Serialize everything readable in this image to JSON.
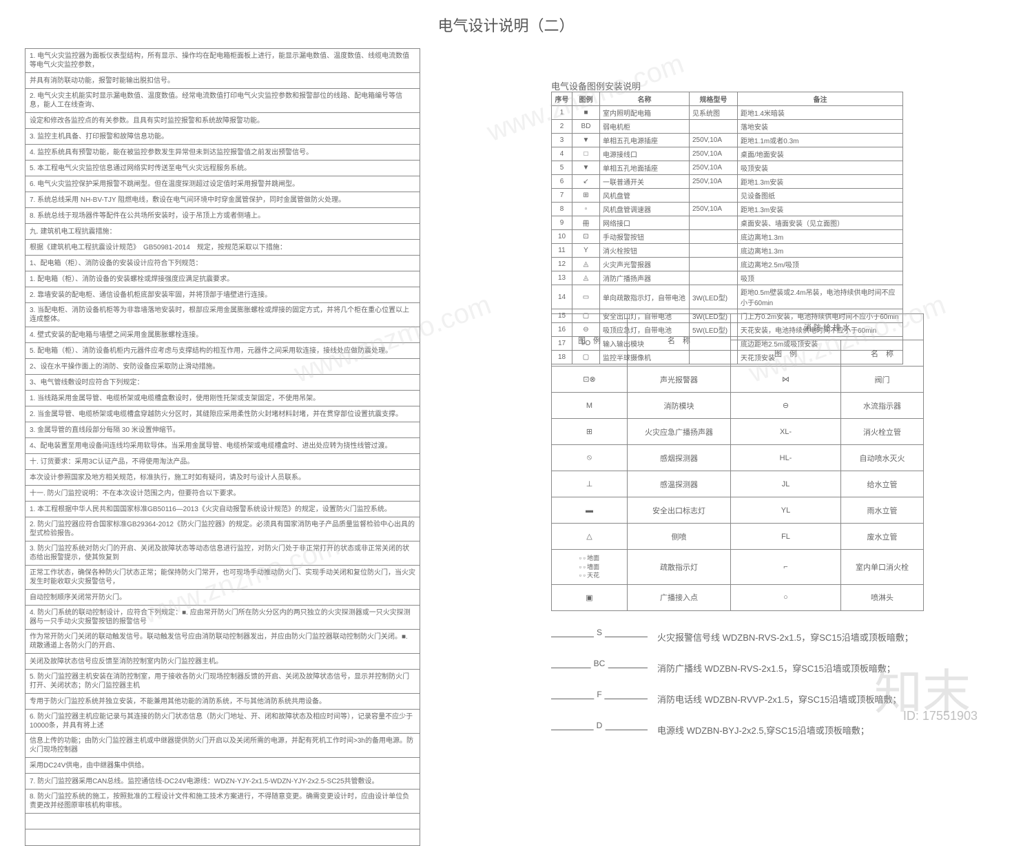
{
  "title": "电气设计说明（二）",
  "watermark_text": "www.znzmo.com",
  "watermark_big": "知末",
  "watermark_id": "ID: 17551903",
  "left_rows": [
    "1. 电气火灾监控器为面板仪表型结构，所有显示、操作均在配电箱柜面板上进行，能显示漏电数值、温度数值、线缆电流数值等电气火灾监控参数，",
    "并具有消防联动功能，报警时能输出脱扣信号。",
    "2. 电气火灾主机能实时显示漏电数值、温度数值。经常电流数值打印电气火灾监控参数和报警部位的线路、配电箱编号等信息，能人工在线查询、",
    "设定和修改各监控点的有关参数。且具有实时监控报警和系统故障报警功能。",
    "3. 监控主机具备、打印报警和故障信息功能。",
    "4. 监控系统具有预警功能，能在被监控参数发生异常但未到达监控报警值之前发出预警信号。",
    "5. 本工程电气火灾监控信息通过网络实时传送至电气火灾远程服务系统。",
    "6. 电气火灾监控保护采用报警不跳闸型。但在温度探测超过设定值时采用报警并跳闸型。",
    "7. 系统总线采用 NH-BV-TJY 阻燃电线，敷设在电气间环境中时穿金属管保护，同时金属管做防火处理。",
    "8. 系统总线于现场器件等配件在公共场所安装时，设于吊顶上方或者侧墙上。",
    "九. 建筑机电工程抗震措施：",
    "根据《建筑机电工程抗震设计规范》　GB50981-2014　规定，按规范采取以下措施：",
    "1、配电箱（柜）、消防设备的安装设计应符合下列规范：",
    "1. 配电箱（柜）、消防设备的安装螺栓或焊接强度应满足抗震要求。",
    "2. 靠墙安装的配电柜、通信设备机柜底部安装牢固，并将顶部于墙壁进行连接。",
    "3. 当配电柜、消防设备机柜等为非靠墙落地安装时，根部应采用金属膨胀螺栓或焊接的固定方式，并将几个柜在重心位置以上连成整体。",
    "4. 壁式安装的配电箱与墙壁之间采用金属膨胀螺栓连接。",
    "5. 配电箱（柜）、消防设备机柜内元器件应考虑与支撑结构的相互作用，元器件之间采用软连接，接线处应做防震处理。",
    "2、设在水平操作面上的消防、安防设备应采取防止滑动措施。",
    "3、电气管线敷设时应符合下列规定：",
    "1. 当线路采用金属导管、电缆桥架或电缆槽盒敷设时，使用刚性托架或支架固定，不使用吊架。",
    "2. 当金属导管、电缆桥架或电缆槽盒穿越防火分区时，其缝隙应采用柔性防火封堵材料封堵，并在贯穿部位设置抗震支撑。",
    "3. 金属导管的直线段部分每隔 30 米设置伸缩节。",
    "4、配电装置至用电设备间连线均采用软导体。当采用金属导管、电缆桥架或电缆槽盒时、进出处应转为挠性线管过渡。",
    "十. 订货要求：采用3C认证产品，不得使用淘汰产品。",
    "本次设计参照国家及地方相关规范，标准执行，施工时如有疑问，请及时与设计人员联系。",
    "十一. 防火门监控说明：不在本次设计范围之内，但要符合以下要求。",
    "1. 本工程根据中华人民共和国国家标准GB50116—2013《火灾自动报警系统设计规范》的规定，设置防火门监控系统。",
    "2. 防火门监控器应符合国家标准GB29364-2012《防火门监控器》的规定。必须具有国家消防电子产品质量监督检验中心出具的型式检验报告。",
    "3. 防火门监控系统对防火门的开启、关闭及故障状态等动态信息进行监控，对防火门处于非正常打开的状态或非正常关闭的状态给出报警提示，使其恢复到",
    "正常工作状态，确保各种防火门状态正常；能保持防火门常开，也可现场手动推动防火门、实现手动关闭和复位防火门，当火灾发生时能收取火灾报警信号，",
    "自动控制顺序关闭常开防火门。",
    "4. 防火门系统的联动控制设计，应符合下列规定：■. 应由常开防火门所在防火分区内的两只独立的火灾探测器或一只火灾探测器与一只手动火灾报警按钮的报警信号",
    "作为常开防火门关闭的联动触发信号。联动触发信号应由消防联动控制器发出，并应由防火门监控器联动控制防火门关闭。■. 疏散通道上各防火门的开启、",
    "关闭及故障状态信号应反馈至消防控制室内防火门监控器主机。",
    "5. 防火门监控器主机安装在消防控制室，用于接收各防火门现场控制器反馈的开启、关闭及故障状态信号，显示并控制防火门打开、关闭状态；防火门监控器主机",
    "专用于防火门监控系统并独立安装，不能兼用其他功能的消防系统，不与其他消防系统共用设备。",
    "6. 防火门监控器主机应能记录与其连接的防火门状态信息（防火门地址、开、闭和故障状态及相应时间等），记录容量不应少于10000条，并具有将上述",
    "信息上传的功能；由防火门监控器主机或中继器提供防火门开启以及关闭所需的电源，并配有死机工作时间>3h的备用电源。防火门现场控制器",
    "采用DC24V供电，由中继器集中供给。",
    "7. 防火门监控器采用CAN总线。监控通信线-DC24V电源线：WDZN-YJY-2x1.5-WDZN-YJY-2x2.5-SC25共管敷设。",
    "8. 防火门监控系统的施工，按照批准的工程设计文件和施工技术方案进行，不得随意变更。确需变更设计时，应由设计单位负责更改并经图原审核机构审核。",
    "　",
    "　"
  ],
  "equip_title": "电气设备图例安装说明",
  "equip_header": [
    "序号",
    "图例",
    "名称",
    "规格型号",
    "备注"
  ],
  "equip_rows": [
    [
      "1",
      "■",
      "室内照明配电箱",
      "见系统图",
      "距地1.4米暗装"
    ],
    [
      "2",
      "BD",
      "弱电机柜",
      "",
      "落地安装"
    ],
    [
      "3",
      "▼",
      "单相五孔电源插座",
      "250V,10A",
      "距地1.1m或者0.3m"
    ],
    [
      "4",
      "□",
      "电源接线口",
      "250V,10A",
      "桌面/地面安装"
    ],
    [
      "5",
      "▼",
      "单相五孔地面插座",
      "250V,10A",
      "吸顶安装"
    ],
    [
      "6",
      "↙",
      "一联普通开关",
      "250V,10A",
      "距地1.3m安装"
    ],
    [
      "7",
      "⊞",
      "风机盘管",
      "",
      "见设备图纸"
    ],
    [
      "8",
      "▫",
      "风机盘管调速器",
      "250V,10A",
      "距地1.3m安装"
    ],
    [
      "9",
      "冊",
      "网络接口",
      "",
      "桌面安装、墙面安装（见立面图）"
    ],
    [
      "10",
      "⊡",
      "手动报警按钮",
      "",
      "底边离地1.3m"
    ],
    [
      "11",
      "Y",
      "消火栓按钮",
      "",
      "底边离地1.3m"
    ],
    [
      "12",
      "◬",
      "火灾声光警报器",
      "",
      "底边离地2.5m/吸顶"
    ],
    [
      "13",
      "◬",
      "消防广播扬声器",
      "",
      "吸顶"
    ],
    [
      "14",
      "▭",
      "单向疏散指示灯，自带电池",
      "3W(LED型)",
      "距地0.5m壁装或2.4m吊装，电池持续供电时间不应小于60min"
    ],
    [
      "15",
      "▢",
      "安全出口灯，自带电池",
      "3W(LED型)",
      "门上方0.2m安装，电池持续供电时间不应小于60min"
    ],
    [
      "16",
      "⊖",
      "吸顶应急灯，自带电池",
      "5W(LED型)",
      "天花安装，电池持续供电时间不应小于60min"
    ],
    [
      "17",
      "I/O",
      "输入输出模块",
      "",
      "底边距地2.5m或吸顶安装"
    ],
    [
      "18",
      "▢",
      "监控半球摄像机",
      "",
      "天花顶安装"
    ]
  ],
  "symbol_header1": [
    "图　例",
    "名　称"
  ],
  "symbol_header2": [
    "消 防 给 排 水"
  ],
  "symbol_header3": [
    "图　例",
    "名　称"
  ],
  "symbol_rows": [
    [
      "⊡⊗",
      "声光报警器"
    ],
    [
      "M",
      "消防模块"
    ],
    [
      "⊞",
      "火灾应急广播扬声器"
    ],
    [
      "⦸",
      "感烟探测器"
    ],
    [
      "⊥",
      "感温探测器"
    ],
    [
      "▬",
      "安全出口标志灯"
    ],
    [
      "△",
      "侧喷"
    ],
    [
      "▫▫",
      "疏散指示灯"
    ],
    [
      "▣",
      "广播接入点"
    ]
  ],
  "symbol_right_rows": [
    [
      "⋈",
      "阀门"
    ],
    [
      "⊖",
      "水流指示器"
    ],
    [
      "XL-",
      "消火栓立管"
    ],
    [
      "HL-",
      "自动喷水灭火"
    ],
    [
      "JL",
      "给水立管"
    ],
    [
      "YL",
      "雨水立管"
    ],
    [
      "FL",
      "废水立管"
    ],
    [
      "⌐",
      "室内单口消火栓"
    ],
    [
      "○",
      "喷淋头"
    ]
  ],
  "symbol_extra": [
    "地面",
    "墙面",
    "天花"
  ],
  "cables": [
    {
      "code": "S",
      "text": "火灾报警信号线 WDZBN-RVS-2x1.5，穿SC15沿墙或顶板暗敷；"
    },
    {
      "code": "BC",
      "text": "消防广播线 WDZBN-RVS-2x1.5，穿SC15沿墙或顶板暗敷；"
    },
    {
      "code": "F",
      "text": "消防电话线 WDZBN-RVVP-2x1.5，穿SC15沿墙或顶板暗敷；"
    },
    {
      "code": "D",
      "text": "电源线 WDZBN-BYJ-2x2.5,穿SC15沿墙或顶板暗敷；"
    }
  ]
}
